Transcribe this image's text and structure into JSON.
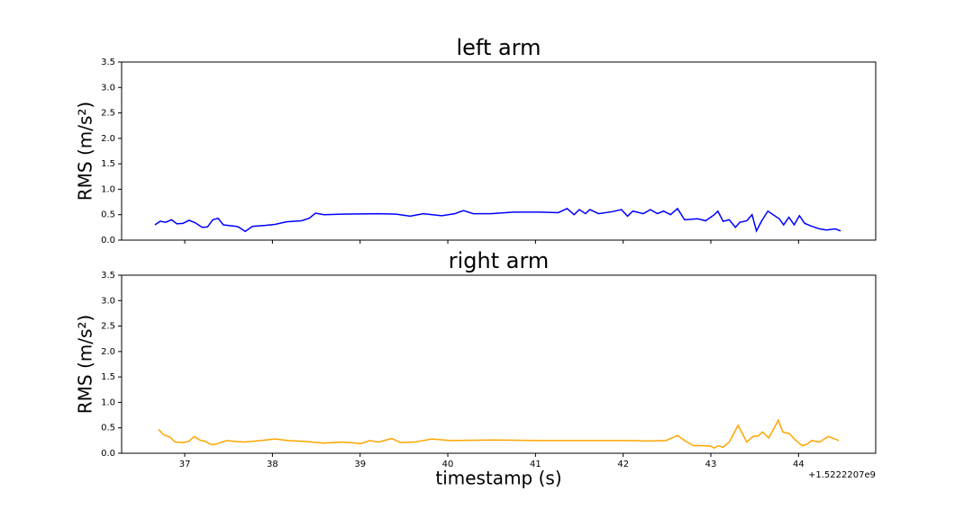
{
  "chart_data": [
    {
      "type": "line",
      "title": "left arm",
      "ylabel": "RMS (m/s²)",
      "xlim": [
        36.28,
        44.88
      ],
      "xticks": [
        37,
        38,
        39,
        40,
        41,
        42,
        43,
        44
      ],
      "show_xticklabels": false,
      "ylim": [
        0,
        3.5
      ],
      "yticks": [
        {
          "value": 0,
          "label": "0.0"
        },
        {
          "value": 0.5,
          "label": "0.5"
        },
        {
          "value": 1,
          "label": "1.0"
        },
        {
          "value": 1.5,
          "label": "1.5"
        },
        {
          "value": 2,
          "label": "2.0"
        },
        {
          "value": 2.5,
          "label": "2.5"
        },
        {
          "value": 3,
          "label": "3.0"
        },
        {
          "value": 3.5,
          "label": "3.5"
        }
      ],
      "series": [
        {
          "color": "#0000ff",
          "x": [
            36.66,
            36.72,
            36.78,
            36.85,
            36.91,
            36.98,
            37.05,
            37.12,
            37.2,
            37.26,
            37.32,
            37.38,
            37.44,
            37.59,
            37.62,
            37.69,
            37.77,
            37.92,
            38.03,
            38.16,
            38.33,
            38.42,
            38.49,
            38.59,
            38.8,
            39.21,
            39.41,
            39.57,
            39.72,
            39.93,
            40.08,
            40.18,
            40.29,
            40.49,
            40.75,
            41.06,
            41.26,
            41.36,
            41.44,
            41.5,
            41.57,
            41.62,
            41.72,
            41.88,
            41.98,
            42.05,
            42.11,
            42.23,
            42.31,
            42.39,
            42.46,
            42.54,
            42.62,
            42.7,
            42.85,
            42.94,
            43.04,
            43.08,
            43.14,
            43.21,
            43.28,
            43.33,
            43.41,
            43.47,
            43.52,
            43.58,
            43.65,
            43.78,
            43.83,
            43.89,
            43.95,
            44.01,
            44.07,
            44.14,
            44.24,
            44.32,
            44.42,
            44.48
          ],
          "values": [
            0.3,
            0.37,
            0.35,
            0.4,
            0.32,
            0.33,
            0.39,
            0.34,
            0.25,
            0.26,
            0.4,
            0.43,
            0.3,
            0.27,
            0.25,
            0.17,
            0.27,
            0.29,
            0.31,
            0.36,
            0.38,
            0.43,
            0.53,
            0.5,
            0.51,
            0.52,
            0.51,
            0.47,
            0.52,
            0.48,
            0.52,
            0.58,
            0.52,
            0.52,
            0.55,
            0.55,
            0.54,
            0.62,
            0.5,
            0.6,
            0.52,
            0.6,
            0.52,
            0.56,
            0.6,
            0.47,
            0.57,
            0.52,
            0.6,
            0.52,
            0.57,
            0.5,
            0.62,
            0.4,
            0.42,
            0.38,
            0.5,
            0.57,
            0.37,
            0.4,
            0.25,
            0.35,
            0.38,
            0.5,
            0.18,
            0.38,
            0.57,
            0.42,
            0.3,
            0.45,
            0.3,
            0.48,
            0.33,
            0.28,
            0.22,
            0.2,
            0.22,
            0.18
          ]
        }
      ]
    },
    {
      "type": "line",
      "title": "right arm",
      "ylabel": "RMS (m/s²)",
      "xlabel": "timestamp (s)",
      "offset_text": "+1.5222207e9",
      "xlim": [
        36.28,
        44.88
      ],
      "xticks": [
        37,
        38,
        39,
        40,
        41,
        42,
        43,
        44
      ],
      "show_xticklabels": true,
      "ylim": [
        0,
        3.5
      ],
      "yticks": [
        {
          "value": 0,
          "label": "0.0"
        },
        {
          "value": 0.5,
          "label": "0.5"
        },
        {
          "value": 1,
          "label": "1.0"
        },
        {
          "value": 1.5,
          "label": "1.5"
        },
        {
          "value": 2,
          "label": "2.0"
        },
        {
          "value": 2.5,
          "label": "2.5"
        },
        {
          "value": 3,
          "label": "3.0"
        },
        {
          "value": 3.5,
          "label": "3.5"
        }
      ],
      "series": [
        {
          "color": "#ffa500",
          "x": [
            36.7,
            36.76,
            36.83,
            36.89,
            36.99,
            37.05,
            37.11,
            37.17,
            37.24,
            37.3,
            37.36,
            37.48,
            37.59,
            37.69,
            37.87,
            38.03,
            38.18,
            38.39,
            38.59,
            38.8,
            39.01,
            39.11,
            39.21,
            39.36,
            39.46,
            39.62,
            39.82,
            40.03,
            40.54,
            41.06,
            41.57,
            41.88,
            42.08,
            42.28,
            42.49,
            42.62,
            42.7,
            42.8,
            42.9,
            43.0,
            43.04,
            43.08,
            43.14,
            43.21,
            43.31,
            43.41,
            43.48,
            43.54,
            43.59,
            43.66,
            43.77,
            43.82,
            43.9,
            43.97,
            44.04,
            44.1,
            44.15,
            44.24,
            44.34,
            44.46
          ],
          "values": [
            0.47,
            0.36,
            0.32,
            0.22,
            0.21,
            0.24,
            0.33,
            0.26,
            0.23,
            0.17,
            0.18,
            0.25,
            0.23,
            0.22,
            0.25,
            0.28,
            0.25,
            0.23,
            0.2,
            0.22,
            0.19,
            0.25,
            0.22,
            0.29,
            0.21,
            0.22,
            0.28,
            0.25,
            0.26,
            0.25,
            0.25,
            0.25,
            0.25,
            0.24,
            0.25,
            0.35,
            0.25,
            0.15,
            0.15,
            0.14,
            0.1,
            0.15,
            0.12,
            0.22,
            0.55,
            0.22,
            0.33,
            0.34,
            0.42,
            0.3,
            0.65,
            0.42,
            0.38,
            0.25,
            0.15,
            0.18,
            0.25,
            0.22,
            0.33,
            0.25
          ]
        }
      ]
    }
  ]
}
